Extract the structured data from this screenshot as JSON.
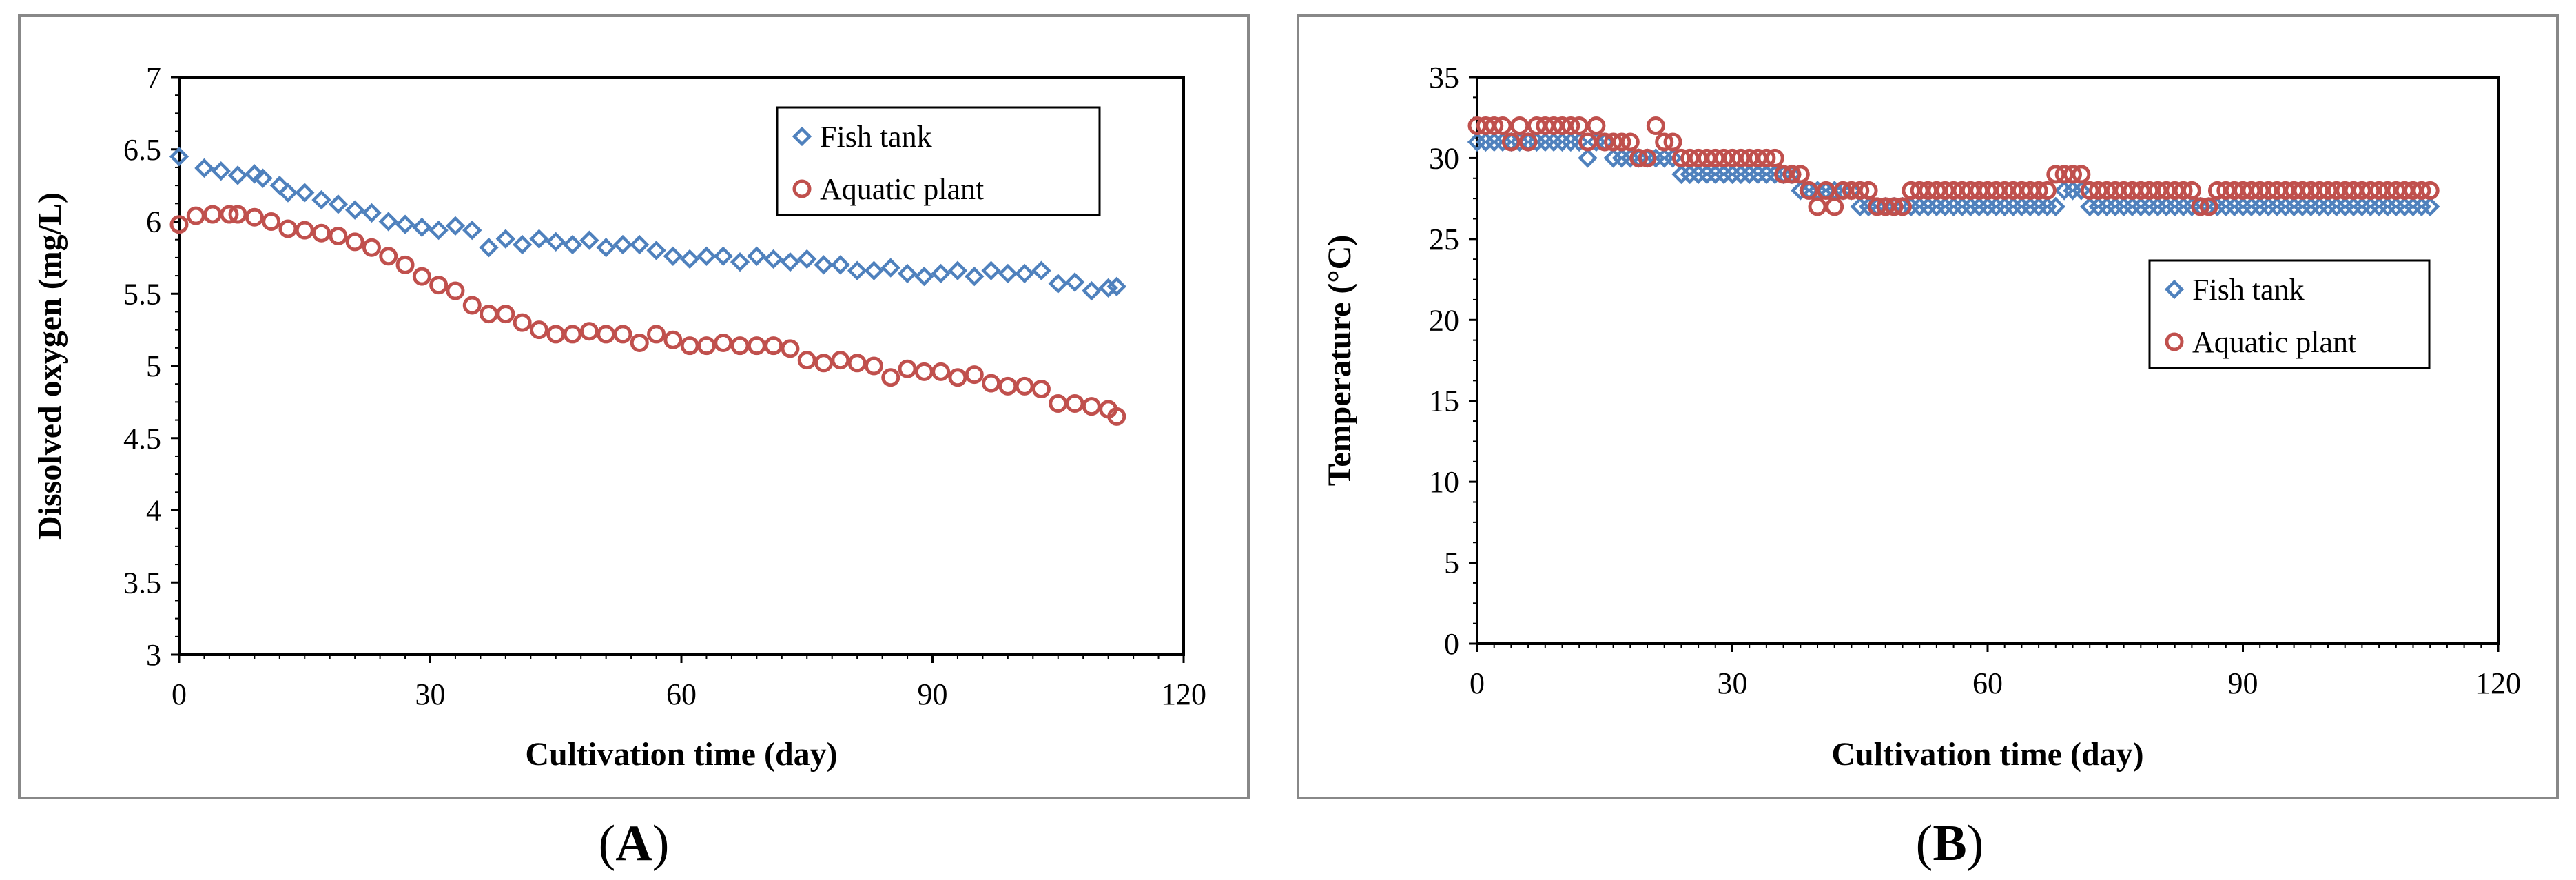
{
  "chart_data": [
    {
      "panel": "A",
      "caption_prefix": "(",
      "caption_letter": "A",
      "caption_suffix": ")",
      "type": "scatter",
      "title": "",
      "xlabel": "Cultivation time (day)",
      "ylabel": "Dissolved oxygen (mg/L)",
      "xlim": [
        0,
        120
      ],
      "ylim": [
        3,
        7
      ],
      "xticks": [
        "0",
        "30",
        "60",
        "90",
        "120"
      ],
      "yticks": [
        "3",
        "3.5",
        "4",
        "4.5",
        "5",
        "5.5",
        "6",
        "6.5",
        "7"
      ],
      "grid": false,
      "legend_position": "top-right",
      "series": [
        {
          "name": "Fish tank",
          "marker": "diamond",
          "color": "#4f81bd",
          "x": [
            0,
            3,
            5,
            7,
            9,
            10,
            12,
            13,
            15,
            17,
            19,
            21,
            23,
            25,
            27,
            29,
            31,
            33,
            35,
            37,
            39,
            41,
            43,
            45,
            47,
            49,
            51,
            53,
            55,
            57,
            59,
            61,
            63,
            65,
            67,
            69,
            71,
            73,
            75,
            77,
            79,
            81,
            83,
            85,
            87,
            89,
            91,
            93,
            95,
            97,
            99,
            101,
            103,
            105,
            107,
            109,
            111,
            112
          ],
          "y": [
            6.45,
            6.37,
            6.35,
            6.32,
            6.33,
            6.3,
            6.25,
            6.2,
            6.2,
            6.15,
            6.12,
            6.08,
            6.06,
            6.0,
            5.98,
            5.96,
            5.94,
            5.97,
            5.94,
            5.82,
            5.88,
            5.84,
            5.88,
            5.86,
            5.84,
            5.87,
            5.82,
            5.84,
            5.84,
            5.8,
            5.76,
            5.74,
            5.76,
            5.76,
            5.72,
            5.76,
            5.74,
            5.72,
            5.74,
            5.7,
            5.7,
            5.66,
            5.66,
            5.68,
            5.64,
            5.62,
            5.64,
            5.66,
            5.62,
            5.66,
            5.64,
            5.64,
            5.66,
            5.57,
            5.58,
            5.52,
            5.54,
            5.55
          ]
        },
        {
          "name": "Aquatic plant",
          "marker": "circle",
          "color": "#c0504d",
          "x": [
            0,
            2,
            4,
            6,
            7,
            9,
            11,
            13,
            15,
            17,
            19,
            21,
            23,
            25,
            27,
            29,
            31,
            33,
            35,
            37,
            39,
            41,
            43,
            45,
            47,
            49,
            51,
            53,
            55,
            57,
            59,
            61,
            63,
            65,
            67,
            69,
            71,
            73,
            75,
            77,
            79,
            81,
            83,
            85,
            87,
            89,
            91,
            93,
            95,
            97,
            99,
            101,
            103,
            105,
            107,
            109,
            111,
            112
          ],
          "y": [
            5.98,
            6.04,
            6.05,
            6.05,
            6.05,
            6.03,
            6.0,
            5.95,
            5.94,
            5.92,
            5.9,
            5.86,
            5.82,
            5.76,
            5.7,
            5.62,
            5.56,
            5.52,
            5.42,
            5.36,
            5.36,
            5.3,
            5.25,
            5.22,
            5.22,
            5.24,
            5.22,
            5.22,
            5.16,
            5.22,
            5.18,
            5.14,
            5.14,
            5.16,
            5.14,
            5.14,
            5.14,
            5.12,
            5.04,
            5.02,
            5.04,
            5.02,
            5.0,
            4.92,
            4.98,
            4.96,
            4.96,
            4.92,
            4.94,
            4.88,
            4.86,
            4.86,
            4.84,
            4.74,
            4.74,
            4.72,
            4.7,
            4.65
          ]
        }
      ]
    },
    {
      "panel": "B",
      "caption_prefix": "(",
      "caption_letter": "B",
      "caption_suffix": ")",
      "type": "scatter",
      "title": "",
      "xlabel": "Cultivation time (day)",
      "ylabel": "Temperature (°C)",
      "xlim": [
        0,
        120
      ],
      "ylim": [
        0,
        35
      ],
      "xticks": [
        "0",
        "30",
        "60",
        "90",
        "120"
      ],
      "yticks": [
        "0",
        "5",
        "10",
        "15",
        "20",
        "25",
        "30",
        "35"
      ],
      "grid": false,
      "legend_position": "middle-right",
      "series": [
        {
          "name": "Fish tank",
          "marker": "diamond",
          "color": "#4f81bd",
          "x": [
            0,
            1,
            2,
            3,
            4,
            5,
            6,
            7,
            8,
            9,
            10,
            11,
            12,
            13,
            14,
            15,
            16,
            17,
            18,
            19,
            20,
            21,
            22,
            23,
            24,
            25,
            26,
            27,
            28,
            29,
            30,
            31,
            32,
            33,
            34,
            35,
            36,
            37,
            38,
            39,
            40,
            41,
            42,
            43,
            44,
            45,
            46,
            47,
            48,
            49,
            50,
            51,
            52,
            53,
            54,
            55,
            56,
            57,
            58,
            59,
            60,
            61,
            62,
            63,
            64,
            65,
            66,
            67,
            68,
            69,
            70,
            71,
            72,
            73,
            74,
            75,
            76,
            77,
            78,
            79,
            80,
            81,
            82,
            83,
            84,
            85,
            86,
            87,
            88,
            89,
            90,
            91,
            92,
            93,
            94,
            95,
            96,
            97,
            98,
            99,
            100,
            101,
            102,
            103,
            104,
            105,
            106,
            107,
            108,
            109,
            110,
            111,
            112
          ],
          "y": [
            31,
            31,
            31,
            31,
            31,
            31,
            31,
            31,
            31,
            31,
            31,
            31,
            31,
            30,
            31,
            31,
            30,
            30,
            30,
            30,
            30,
            30,
            30,
            30,
            29,
            29,
            29,
            29,
            29,
            29,
            29,
            29,
            29,
            29,
            29,
            29,
            29,
            29,
            28,
            28,
            28,
            28,
            28,
            28,
            28,
            27,
            27,
            27,
            27,
            27,
            27,
            27,
            27,
            27,
            27,
            27,
            27,
            27,
            27,
            27,
            27,
            27,
            27,
            27,
            27,
            27,
            27,
            27,
            27,
            28,
            28,
            28,
            27,
            27,
            27,
            27,
            27,
            27,
            27,
            27,
            27,
            27,
            27,
            27,
            27,
            27,
            27,
            27,
            27,
            27,
            27,
            27,
            27,
            27,
            27,
            27,
            27,
            27,
            27,
            27,
            27,
            27,
            27,
            27,
            27,
            27,
            27,
            27,
            27,
            27,
            27,
            27,
            27
          ]
        },
        {
          "name": "Aquatic plant",
          "marker": "circle",
          "color": "#c0504d",
          "x": [
            0,
            1,
            2,
            3,
            4,
            5,
            6,
            7,
            8,
            9,
            10,
            11,
            12,
            13,
            14,
            15,
            16,
            17,
            18,
            19,
            20,
            21,
            22,
            23,
            24,
            25,
            26,
            27,
            28,
            29,
            30,
            31,
            32,
            33,
            34,
            35,
            36,
            37,
            38,
            39,
            40,
            41,
            42,
            43,
            44,
            45,
            46,
            47,
            48,
            49,
            50,
            51,
            52,
            53,
            54,
            55,
            56,
            57,
            58,
            59,
            60,
            61,
            62,
            63,
            64,
            65,
            66,
            67,
            68,
            69,
            70,
            71,
            72,
            73,
            74,
            75,
            76,
            77,
            78,
            79,
            80,
            81,
            82,
            83,
            84,
            85,
            86,
            87,
            88,
            89,
            90,
            91,
            92,
            93,
            94,
            95,
            96,
            97,
            98,
            99,
            100,
            101,
            102,
            103,
            104,
            105,
            106,
            107,
            108,
            109,
            110,
            111,
            112
          ],
          "y": [
            32,
            32,
            32,
            32,
            31,
            32,
            31,
            32,
            32,
            32,
            32,
            32,
            32,
            31,
            32,
            31,
            31,
            31,
            31,
            30,
            30,
            32,
            31,
            31,
            30,
            30,
            30,
            30,
            30,
            30,
            30,
            30,
            30,
            30,
            30,
            30,
            29,
            29,
            29,
            28,
            27,
            28,
            27,
            28,
            28,
            28,
            28,
            27,
            27,
            27,
            27,
            28,
            28,
            28,
            28,
            28,
            28,
            28,
            28,
            28,
            28,
            28,
            28,
            28,
            28,
            28,
            28,
            28,
            29,
            29,
            29,
            29,
            28,
            28,
            28,
            28,
            28,
            28,
            28,
            28,
            28,
            28,
            28,
            28,
            28,
            27,
            27,
            28,
            28,
            28,
            28,
            28,
            28,
            28,
            28,
            28,
            28,
            28,
            28,
            28,
            28,
            28,
            28,
            28,
            28,
            28,
            28,
            28,
            28,
            28,
            28,
            28,
            28
          ]
        }
      ]
    }
  ]
}
